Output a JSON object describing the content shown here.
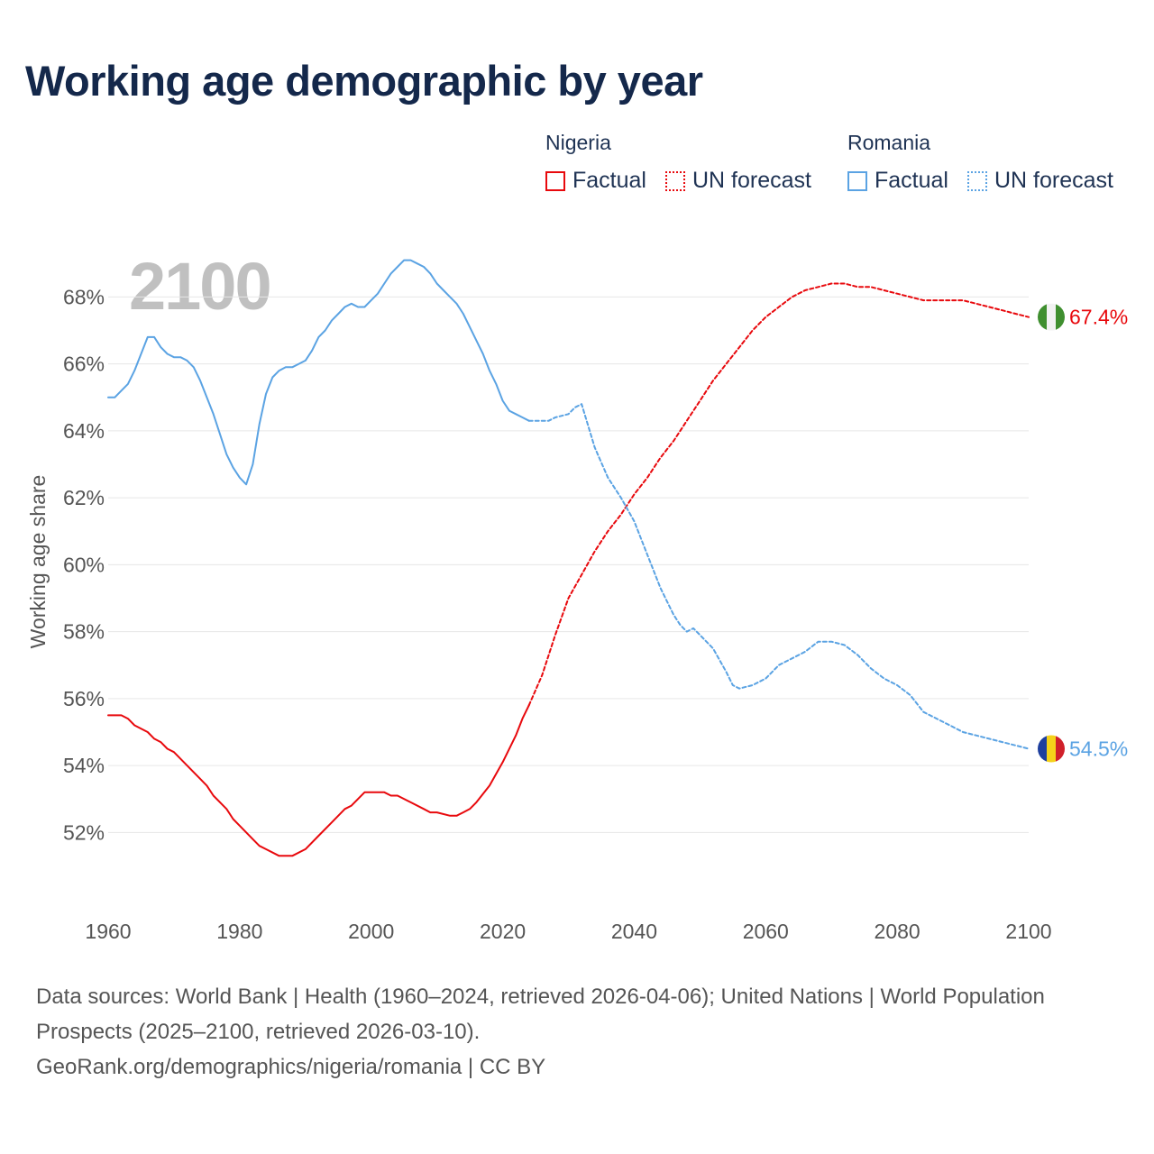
{
  "title": "Working age demographic by year",
  "legend": {
    "nigeria": {
      "name": "Nigeria",
      "factual": "Factual",
      "forecast": "UN forecast",
      "color": "#e8090d"
    },
    "romania": {
      "name": "Romania",
      "factual": "Factual",
      "forecast": "UN forecast",
      "color": "#5ba3e3"
    }
  },
  "year_watermark": "2100",
  "end_labels": {
    "nigeria": "67.4%",
    "romania": "54.5%"
  },
  "flags": {
    "nigeria": {
      "name": "nigeria-flag-icon",
      "colors": [
        "#3f8f2f",
        "#f2f2f2",
        "#3f8f2f"
      ]
    },
    "romania": {
      "name": "romania-flag-icon",
      "colors": [
        "#1e3f9e",
        "#f5d21a",
        "#d0202a"
      ]
    }
  },
  "footer": {
    "sources": "Data sources: World Bank | Health (1960–2024, retrieved 2026-04-06); United Nations | World Population Prospects (2025–2100, retrieved 2026-03-10).",
    "url": "GeoRank.org/demographics/nigeria/romania | CC BY"
  },
  "chart_data": {
    "type": "line",
    "title": "Working age demographic by year",
    "xlabel": "",
    "ylabel": "Working age share",
    "xlim": [
      1960,
      2100
    ],
    "ylim": [
      49.8,
      69.6
    ],
    "x_ticks": [
      1960,
      1980,
      2000,
      2020,
      2040,
      2060,
      2080,
      2100
    ],
    "x_tick_labels": [
      "1960",
      "1980",
      "2000",
      "2020",
      "2040",
      "2060",
      "2080",
      "2100"
    ],
    "y_ticks": [
      52,
      54,
      56,
      58,
      60,
      62,
      64,
      66,
      68
    ],
    "y_tick_labels": [
      "52%",
      "54%",
      "56%",
      "58%",
      "60%",
      "62%",
      "64%",
      "66%",
      "68%"
    ],
    "grid": true,
    "series": [
      {
        "name": "Nigeria",
        "segment": "Factual",
        "style": "solid",
        "color": "#e8090d",
        "x": [
          1960,
          1962,
          1963,
          1964,
          1966,
          1967,
          1968,
          1969,
          1970,
          1972,
          1974,
          1975,
          1976,
          1978,
          1979,
          1980,
          1982,
          1983,
          1984,
          1986,
          1988,
          1990,
          1992,
          1994,
          1996,
          1997,
          1998,
          1999,
          2000,
          2002,
          2003,
          2004,
          2006,
          2008,
          2009,
          2010,
          2012,
          2013,
          2014,
          2015,
          2016,
          2018,
          2020,
          2022,
          2023,
          2024
        ],
        "values": [
          55.5,
          55.5,
          55.4,
          55.2,
          55.0,
          54.8,
          54.7,
          54.5,
          54.4,
          54.0,
          53.6,
          53.4,
          53.1,
          52.7,
          52.4,
          52.2,
          51.8,
          51.6,
          51.5,
          51.3,
          51.3,
          51.5,
          51.9,
          52.3,
          52.7,
          52.8,
          53.0,
          53.2,
          53.2,
          53.2,
          53.1,
          53.1,
          52.9,
          52.7,
          52.6,
          52.6,
          52.5,
          52.5,
          52.6,
          52.7,
          52.9,
          53.4,
          54.1,
          54.9,
          55.4,
          55.8
        ]
      },
      {
        "name": "Nigeria",
        "segment": "UN forecast",
        "style": "dashed",
        "color": "#e8090d",
        "x": [
          2024,
          2026,
          2028,
          2030,
          2032,
          2034,
          2036,
          2038,
          2040,
          2042,
          2044,
          2046,
          2048,
          2050,
          2052,
          2054,
          2056,
          2058,
          2060,
          2062,
          2064,
          2066,
          2068,
          2070,
          2072,
          2074,
          2076,
          2078,
          2080,
          2082,
          2084,
          2086,
          2088,
          2090,
          2092,
          2094,
          2096,
          2098,
          2100
        ],
        "values": [
          55.8,
          56.7,
          57.9,
          59.0,
          59.7,
          60.4,
          61.0,
          61.5,
          62.1,
          62.6,
          63.2,
          63.7,
          64.3,
          64.9,
          65.5,
          66.0,
          66.5,
          67.0,
          67.4,
          67.7,
          68.0,
          68.2,
          68.3,
          68.4,
          68.4,
          68.3,
          68.3,
          68.2,
          68.1,
          68.0,
          67.9,
          67.9,
          67.9,
          67.9,
          67.8,
          67.7,
          67.6,
          67.5,
          67.4
        ]
      },
      {
        "name": "Romania",
        "segment": "Factual",
        "style": "solid",
        "color": "#5ba3e3",
        "x": [
          1960,
          1961,
          1962,
          1963,
          1964,
          1965,
          1966,
          1967,
          1968,
          1969,
          1970,
          1971,
          1972,
          1973,
          1974,
          1975,
          1976,
          1977,
          1978,
          1979,
          1980,
          1981,
          1982,
          1983,
          1984,
          1985,
          1986,
          1987,
          1988,
          1989,
          1990,
          1991,
          1992,
          1993,
          1994,
          1995,
          1996,
          1997,
          1998,
          1999,
          2000,
          2001,
          2002,
          2003,
          2004,
          2005,
          2006,
          2007,
          2008,
          2009,
          2010,
          2011,
          2012,
          2013,
          2014,
          2015,
          2016,
          2017,
          2018,
          2019,
          2020,
          2021,
          2022,
          2023,
          2024
        ],
        "values": [
          65.0,
          65.0,
          65.2,
          65.4,
          65.8,
          66.3,
          66.8,
          66.8,
          66.5,
          66.3,
          66.2,
          66.2,
          66.1,
          65.9,
          65.5,
          65.0,
          64.5,
          63.9,
          63.3,
          62.9,
          62.6,
          62.4,
          63.0,
          64.2,
          65.1,
          65.6,
          65.8,
          65.9,
          65.9,
          66.0,
          66.1,
          66.4,
          66.8,
          67.0,
          67.3,
          67.5,
          67.7,
          67.8,
          67.7,
          67.7,
          67.9,
          68.1,
          68.4,
          68.7,
          68.9,
          69.1,
          69.1,
          69.0,
          68.9,
          68.7,
          68.4,
          68.2,
          68.0,
          67.8,
          67.5,
          67.1,
          66.7,
          66.3,
          65.8,
          65.4,
          64.9,
          64.6,
          64.5,
          64.4,
          64.3
        ]
      },
      {
        "name": "Romania",
        "segment": "UN forecast",
        "style": "dashed",
        "color": "#5ba3e3",
        "x": [
          2024,
          2026,
          2027,
          2028,
          2030,
          2031,
          2032,
          2034,
          2036,
          2038,
          2040,
          2042,
          2044,
          2046,
          2047,
          2048,
          2049,
          2050,
          2052,
          2054,
          2055,
          2056,
          2058,
          2060,
          2062,
          2064,
          2066,
          2068,
          2070,
          2072,
          2074,
          2076,
          2078,
          2080,
          2082,
          2084,
          2086,
          2088,
          2090,
          2092,
          2094,
          2096,
          2098,
          2100
        ],
        "values": [
          64.3,
          64.3,
          64.3,
          64.4,
          64.5,
          64.7,
          64.8,
          63.5,
          62.6,
          62.0,
          61.3,
          60.3,
          59.3,
          58.5,
          58.2,
          58.0,
          58.1,
          57.9,
          57.5,
          56.8,
          56.4,
          56.3,
          56.4,
          56.6,
          57.0,
          57.2,
          57.4,
          57.7,
          57.7,
          57.6,
          57.3,
          56.9,
          56.6,
          56.4,
          56.1,
          55.6,
          55.4,
          55.2,
          55.0,
          54.9,
          54.8,
          54.7,
          54.6,
          54.5
        ]
      }
    ]
  }
}
